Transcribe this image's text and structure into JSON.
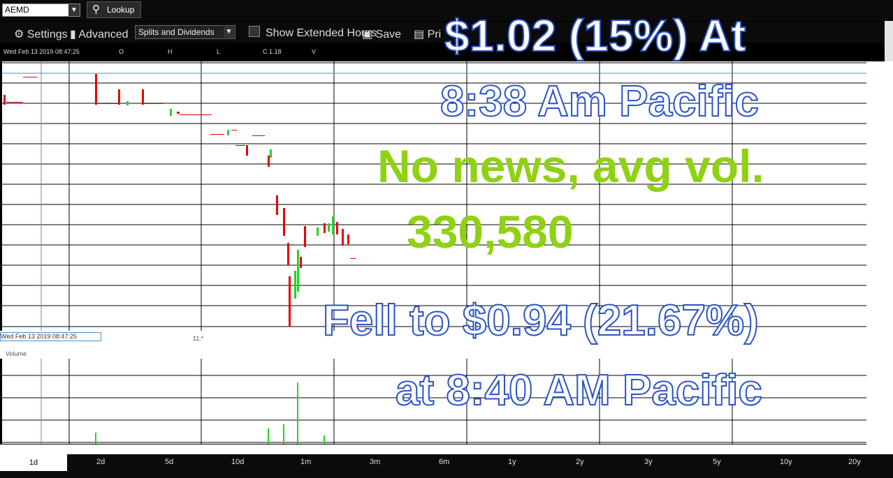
{
  "toolbar": {
    "symbol": "AEMD",
    "lookup_label": "Lookup",
    "settings_label": "Settings",
    "advanced_label": "Advanced",
    "splits_label": "Splits and Dividends",
    "extended_label": "Show Extended Hours",
    "save_label": "Save",
    "print_label": "Pri"
  },
  "infobar": {
    "date": "Wed Feb 13 2019 08:47:25",
    "o": "O",
    "h": "H",
    "l": "L",
    "c": "C 1.18",
    "v": "V"
  },
  "volume_label": "Volume",
  "crosshair_label": "Wed Feb 13 2019 08:47:25",
  "time_label": "11:*",
  "ranges": [
    "1d",
    "2d",
    "5d",
    "10d",
    "1m",
    "3m",
    "6m",
    "1y",
    "2y",
    "3y",
    "5y",
    "10y",
    "20y"
  ],
  "overlay": {
    "line1": "$1.02 (15%) At",
    "line2": "8:38 Am Pacific",
    "line3": "No news, avg vol.",
    "line4": "330,580",
    "line5": "Fell to $0.94 (21.67%)",
    "line6": "at 8:40 AM Pacific"
  },
  "colors": {
    "up": "#26d426",
    "down": "#e80000",
    "accent": "#4a8fd0"
  }
}
